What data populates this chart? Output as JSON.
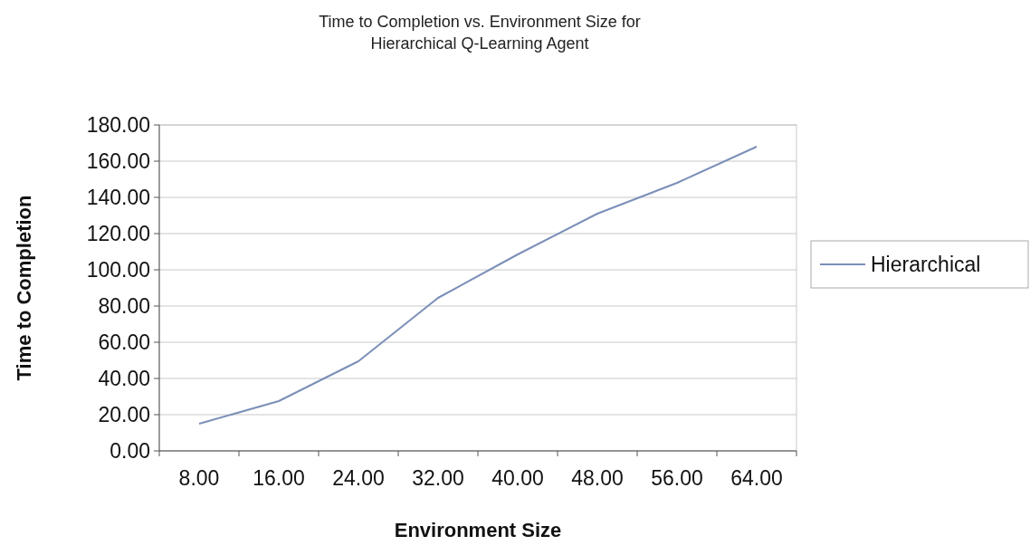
{
  "chart_data": {
    "type": "line",
    "title": "Time to Completion vs. Environment Size for Hierarchical Q-Learning Agent",
    "xlabel": "Environment Size",
    "ylabel": "Time to Completion",
    "categories": [
      "8.00",
      "16.00",
      "24.00",
      "32.00",
      "40.00",
      "48.00",
      "56.00",
      "64.00"
    ],
    "series": [
      {
        "name": "Hierarchical",
        "color": "#7b8fb8",
        "values": [
          15,
          27.5,
          49.5,
          84.5,
          108.5,
          131,
          148,
          168
        ]
      }
    ],
    "ylim": [
      0,
      180
    ],
    "yticks": [
      {
        "value": 0,
        "label": "0.00"
      },
      {
        "value": 20,
        "label": "20.00"
      },
      {
        "value": 40,
        "label": "40.00"
      },
      {
        "value": 60,
        "label": "60.00"
      },
      {
        "value": 80,
        "label": "80.00"
      },
      {
        "value": 100,
        "label": "100.00"
      },
      {
        "value": 120,
        "label": "120.00"
      },
      {
        "value": 140,
        "label": "140.00"
      },
      {
        "value": 160,
        "label": "160.00"
      },
      {
        "value": 180,
        "label": "180.00"
      }
    ],
    "grid": "y",
    "legend": "right",
    "marker": "none",
    "line_style": "solid"
  }
}
